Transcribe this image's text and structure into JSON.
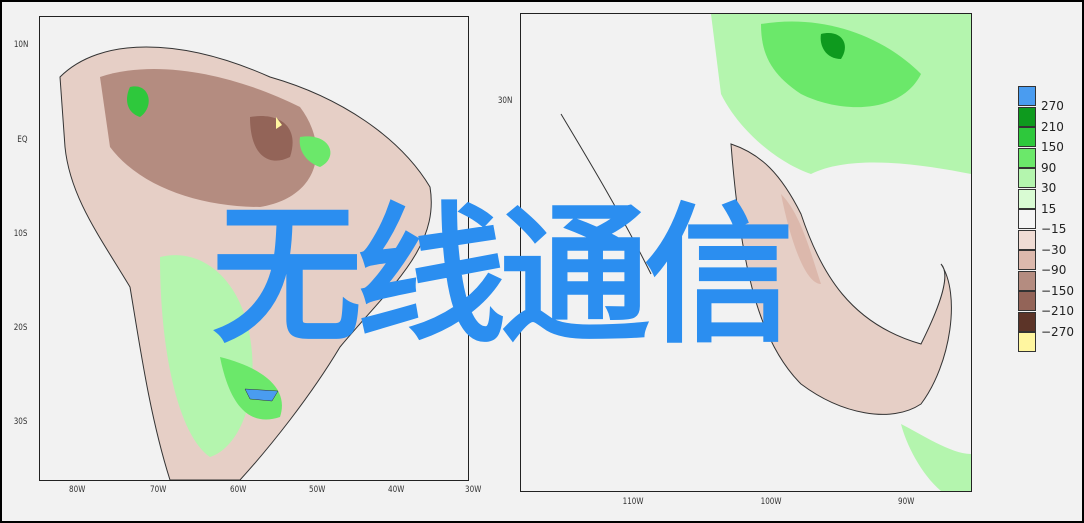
{
  "overlay_text": "无线通信",
  "left_map": {
    "lat_labels": [
      "10N",
      "EQ",
      "10S",
      "20S",
      "30S"
    ],
    "lon_labels": [
      "80W",
      "70W",
      "60W",
      "50W",
      "40W",
      "30W"
    ]
  },
  "right_map": {
    "lat_labels": [
      "30N"
    ],
    "lon_labels": [
      "110W",
      "100W",
      "90W"
    ]
  },
  "legend": {
    "labels": [
      "270",
      "210",
      "150",
      "90",
      "30",
      "15",
      "−15",
      "−30",
      "−90",
      "−150",
      "−210",
      "−270"
    ],
    "colors": [
      "#4a9cf0",
      "#0e9a1e",
      "#2ec83c",
      "#6be86a",
      "#b4f5ae",
      "#d9fbd3",
      "#f4f4f4",
      "#f0dcd4",
      "#dcb8ac",
      "#b48c80",
      "#936458",
      "#5c3428",
      "#fff6a0"
    ]
  }
}
